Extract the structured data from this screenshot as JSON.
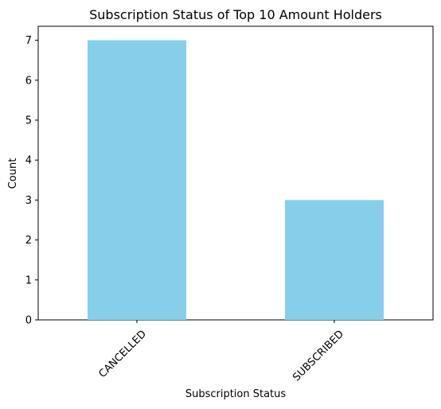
{
  "chart_data": {
    "type": "bar",
    "title": "Subscription Status of Top 10 Amount Holders",
    "xlabel": "Subscription Status",
    "ylabel": "Count",
    "categories": [
      "CANCELLED",
      "SUBSCRIBED"
    ],
    "values": [
      7,
      3
    ],
    "ylim": [
      0,
      7.35
    ],
    "yticks": [
      0,
      1,
      2,
      3,
      4,
      5,
      6,
      7
    ],
    "grid": false,
    "legend": "none",
    "bar_color": "#87CEEB"
  }
}
